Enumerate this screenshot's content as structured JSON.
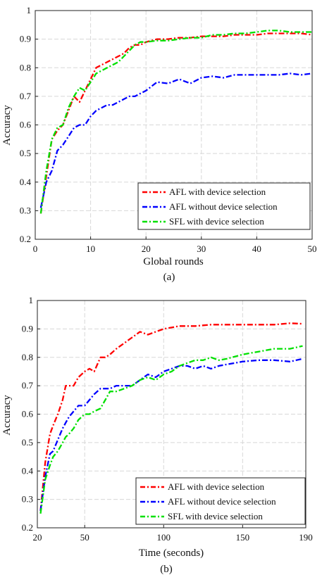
{
  "chart_data": [
    {
      "type": "line",
      "caption": "(a)",
      "xlabel": "Global rounds",
      "ylabel": "Accuracy",
      "xlim": [
        0,
        50
      ],
      "ylim": [
        0.2,
        1.0
      ],
      "xticks": [
        0,
        10,
        20,
        30,
        40,
        50
      ],
      "xtick_labels": [
        "0",
        "10",
        "20",
        "30",
        "40",
        "50"
      ],
      "yticks": [
        0.2,
        0.3,
        0.4,
        0.5,
        0.6,
        0.7,
        0.8,
        0.9,
        1.0
      ],
      "ytick_labels": [
        "0.2",
        "0.3",
        "0.4",
        "0.5",
        "0.6",
        "0.7",
        "0.8",
        "0.9",
        "1"
      ],
      "grid": true,
      "legend_position": "bottom-right",
      "series": [
        {
          "name": "AFL with device selection",
          "color": "#ff0000",
          "x": [
            1,
            2,
            3,
            4,
            5,
            6,
            7,
            8,
            9,
            10,
            11,
            12,
            13,
            14,
            15,
            16,
            17,
            18,
            19,
            20,
            22,
            24,
            26,
            28,
            30,
            32,
            34,
            36,
            38,
            40,
            42,
            44,
            46,
            48,
            50
          ],
          "values": [
            0.29,
            0.42,
            0.55,
            0.58,
            0.6,
            0.65,
            0.7,
            0.68,
            0.72,
            0.76,
            0.8,
            0.81,
            0.82,
            0.83,
            0.84,
            0.85,
            0.87,
            0.88,
            0.88,
            0.89,
            0.9,
            0.9,
            0.905,
            0.905,
            0.91,
            0.91,
            0.91,
            0.915,
            0.915,
            0.915,
            0.92,
            0.92,
            0.92,
            0.92,
            0.915
          ]
        },
        {
          "name": "AFL without device selection",
          "color": "#0000ff",
          "x": [
            1,
            2,
            3,
            4,
            5,
            6,
            7,
            8,
            9,
            10,
            11,
            12,
            13,
            14,
            15,
            16,
            17,
            18,
            19,
            20,
            22,
            24,
            26,
            28,
            30,
            32,
            34,
            36,
            38,
            40,
            42,
            44,
            46,
            48,
            50
          ],
          "values": [
            0.31,
            0.4,
            0.44,
            0.51,
            0.53,
            0.56,
            0.59,
            0.6,
            0.6,
            0.63,
            0.65,
            0.66,
            0.67,
            0.67,
            0.68,
            0.69,
            0.7,
            0.7,
            0.71,
            0.72,
            0.75,
            0.745,
            0.76,
            0.745,
            0.765,
            0.77,
            0.765,
            0.775,
            0.775,
            0.775,
            0.775,
            0.775,
            0.78,
            0.775,
            0.78
          ]
        },
        {
          "name": "SFL with device selection",
          "color": "#00e000",
          "x": [
            1,
            2,
            3,
            4,
            5,
            6,
            7,
            8,
            9,
            10,
            11,
            12,
            13,
            14,
            15,
            16,
            17,
            18,
            19,
            20,
            22,
            24,
            26,
            28,
            30,
            32,
            34,
            36,
            38,
            40,
            42,
            44,
            46,
            48,
            50
          ],
          "values": [
            0.29,
            0.44,
            0.55,
            0.59,
            0.6,
            0.66,
            0.7,
            0.73,
            0.72,
            0.75,
            0.78,
            0.79,
            0.8,
            0.81,
            0.82,
            0.84,
            0.86,
            0.88,
            0.89,
            0.89,
            0.895,
            0.895,
            0.9,
            0.905,
            0.905,
            0.915,
            0.915,
            0.92,
            0.92,
            0.925,
            0.93,
            0.93,
            0.925,
            0.925,
            0.925
          ]
        }
      ]
    },
    {
      "type": "line",
      "caption": "(b)",
      "xlabel": "Time (seconds)",
      "ylabel": "Accuracy",
      "xlim": [
        20,
        190
      ],
      "ylim": [
        0.2,
        1.0
      ],
      "xticks": [
        20,
        50,
        100,
        150,
        190
      ],
      "xtick_labels": [
        "20",
        "50",
        "100",
        "150",
        "190"
      ],
      "yticks": [
        0.2,
        0.3,
        0.4,
        0.5,
        0.6,
        0.7,
        0.8,
        0.9,
        1.0
      ],
      "ytick_labels": [
        "0.2",
        "0.3",
        "0.4",
        "0.5",
        "0.6",
        "0.7",
        "0.8",
        "0.9",
        "1"
      ],
      "grid": true,
      "legend_position": "bottom-right",
      "series": [
        {
          "name": "AFL with device selection",
          "color": "#ff0000",
          "x": [
            22,
            25,
            28,
            30,
            33,
            36,
            38,
            40,
            43,
            46,
            50,
            53,
            56,
            60,
            63,
            66,
            70,
            75,
            80,
            85,
            90,
            95,
            100,
            110,
            120,
            130,
            140,
            150,
            160,
            170,
            180,
            188
          ],
          "values": [
            0.26,
            0.43,
            0.53,
            0.56,
            0.6,
            0.65,
            0.7,
            0.7,
            0.7,
            0.73,
            0.75,
            0.76,
            0.75,
            0.8,
            0.8,
            0.81,
            0.83,
            0.85,
            0.87,
            0.89,
            0.88,
            0.89,
            0.9,
            0.91,
            0.91,
            0.915,
            0.915,
            0.915,
            0.915,
            0.915,
            0.92,
            0.918
          ]
        },
        {
          "name": "AFL without device selection",
          "color": "#0000ff",
          "x": [
            22,
            25,
            28,
            30,
            33,
            36,
            38,
            40,
            43,
            46,
            50,
            53,
            56,
            60,
            63,
            66,
            70,
            75,
            80,
            85,
            90,
            95,
            100,
            105,
            110,
            115,
            120,
            125,
            130,
            135,
            140,
            150,
            160,
            170,
            180,
            188
          ],
          "values": [
            0.26,
            0.38,
            0.46,
            0.47,
            0.51,
            0.55,
            0.57,
            0.59,
            0.61,
            0.63,
            0.63,
            0.65,
            0.67,
            0.69,
            0.69,
            0.69,
            0.7,
            0.7,
            0.7,
            0.72,
            0.74,
            0.73,
            0.75,
            0.76,
            0.77,
            0.77,
            0.76,
            0.77,
            0.76,
            0.77,
            0.775,
            0.785,
            0.79,
            0.79,
            0.785,
            0.795
          ]
        },
        {
          "name": "SFL with device selection",
          "color": "#00e000",
          "x": [
            22,
            25,
            28,
            30,
            33,
            36,
            38,
            40,
            43,
            46,
            50,
            53,
            56,
            60,
            63,
            66,
            70,
            75,
            80,
            85,
            90,
            95,
            100,
            105,
            110,
            115,
            120,
            125,
            130,
            135,
            140,
            150,
            160,
            170,
            180,
            188
          ],
          "values": [
            0.25,
            0.37,
            0.42,
            0.45,
            0.47,
            0.5,
            0.52,
            0.53,
            0.55,
            0.58,
            0.6,
            0.6,
            0.61,
            0.62,
            0.65,
            0.68,
            0.68,
            0.69,
            0.7,
            0.72,
            0.73,
            0.72,
            0.74,
            0.75,
            0.77,
            0.78,
            0.79,
            0.79,
            0.8,
            0.79,
            0.795,
            0.81,
            0.82,
            0.83,
            0.83,
            0.84
          ]
        }
      ]
    }
  ]
}
